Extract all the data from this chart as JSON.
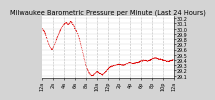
{
  "title": "Milwaukee Barometric Pressure per Minute (Last 24 Hours)",
  "background_color": "#d4d4d4",
  "plot_bg_color": "#ffffff",
  "line_color": "#dd0000",
  "grid_color": "#888888",
  "title_fontsize": 4.8,
  "tick_fontsize": 3.5,
  "ylim": [
    29.05,
    30.25
  ],
  "yticks": [
    29.1,
    29.2,
    29.3,
    29.4,
    29.5,
    29.6,
    29.7,
    29.8,
    29.9,
    30.0,
    30.1,
    30.2
  ],
  "num_points": 1440,
  "pressure_profile": [
    [
      0,
      30.0
    ],
    [
      30,
      29.92
    ],
    [
      60,
      29.75
    ],
    [
      90,
      29.62
    ],
    [
      110,
      29.6
    ],
    [
      130,
      29.68
    ],
    [
      160,
      29.82
    ],
    [
      200,
      29.98
    ],
    [
      230,
      30.07
    ],
    [
      260,
      30.12
    ],
    [
      290,
      30.08
    ],
    [
      310,
      30.14
    ],
    [
      330,
      30.1
    ],
    [
      360,
      30.0
    ],
    [
      390,
      29.9
    ],
    [
      420,
      29.72
    ],
    [
      450,
      29.5
    ],
    [
      480,
      29.28
    ],
    [
      510,
      29.16
    ],
    [
      540,
      29.1
    ],
    [
      570,
      29.12
    ],
    [
      600,
      29.18
    ],
    [
      630,
      29.14
    ],
    [
      660,
      29.12
    ],
    [
      700,
      29.18
    ],
    [
      730,
      29.25
    ],
    [
      760,
      29.28
    ],
    [
      800,
      29.3
    ],
    [
      840,
      29.32
    ],
    [
      880,
      29.3
    ],
    [
      920,
      29.32
    ],
    [
      960,
      29.35
    ],
    [
      1000,
      29.33
    ],
    [
      1040,
      29.35
    ],
    [
      1080,
      29.38
    ],
    [
      1120,
      29.4
    ],
    [
      1160,
      29.38
    ],
    [
      1200,
      29.42
    ],
    [
      1240,
      29.44
    ],
    [
      1280,
      29.42
    ],
    [
      1320,
      29.4
    ],
    [
      1360,
      29.38
    ],
    [
      1400,
      29.38
    ],
    [
      1440,
      29.4
    ]
  ],
  "grid_positions": [
    120,
    240,
    360,
    480,
    600,
    720,
    840,
    960,
    1080,
    1200,
    1320,
    1440
  ],
  "xtick_positions": [
    0,
    120,
    240,
    360,
    480,
    600,
    720,
    840,
    960,
    1080,
    1200,
    1320,
    1440
  ],
  "xtick_labels": [
    "12a",
    "2a",
    "4a",
    "6a",
    "8a",
    "10a",
    "12p",
    "2p",
    "4p",
    "6p",
    "8p",
    "10p",
    "12a"
  ]
}
